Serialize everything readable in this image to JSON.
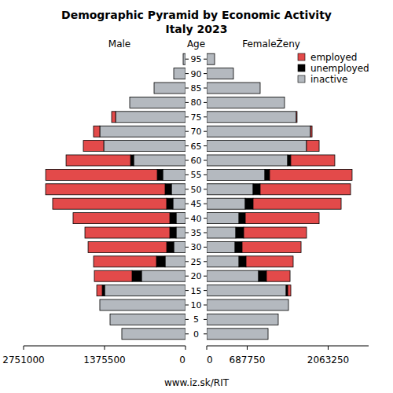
{
  "chart_data": {
    "type": "bar",
    "orientation": "horizontal",
    "stacked": true,
    "title": "Demographic Pyramid by Economic Activity",
    "subtitle": "Italy 2023",
    "left_label": "Male",
    "y_label": "Age",
    "right_label": "FemaleŽeny",
    "source": "www.iz.sk/RIT",
    "legend": "top-right",
    "categories": [
      "0",
      "5",
      "10",
      "15",
      "20",
      "25",
      "30",
      "35",
      "40",
      "45",
      "50",
      "55",
      "60",
      "65",
      "70",
      "75",
      "80",
      "85",
      "90",
      "95"
    ],
    "xlim": [
      0,
      2751000
    ],
    "xticks_left": [
      0,
      1375500,
      2751000
    ],
    "xticks_right": [
      0,
      687750,
      2063250
    ],
    "series": [
      {
        "name": "inactive",
        "color": "#b4b9bf",
        "male": [
          1082000,
          1282000,
          1456000,
          1375000,
          748000,
          347000,
          200000,
          160000,
          160000,
          214000,
          240000,
          387000,
          881000,
          1389000,
          1456000,
          1188000,
          948000,
          534000,
          200000,
          40000
        ],
        "female": [
          1042000,
          1215000,
          1389000,
          1349000,
          881000,
          548000,
          481000,
          494000,
          548000,
          654000,
          788000,
          988000,
          1375000,
          1696000,
          1763000,
          1522000,
          1322000,
          908000,
          454000,
          134000
        ]
      },
      {
        "name": "unemployed",
        "color": "#000000",
        "male": [
          0,
          0,
          0,
          40000,
          160000,
          147000,
          120000,
          107000,
          107000,
          107000,
          107000,
          93000,
          53000,
          0,
          0,
          0,
          0,
          0,
          0,
          0
        ],
        "female": [
          0,
          0,
          0,
          27000,
          134000,
          120000,
          120000,
          134000,
          107000,
          134000,
          120000,
          80000,
          53000,
          0,
          0,
          0,
          0,
          0,
          0,
          0
        ]
      },
      {
        "name": "employed",
        "color": "#e34a4a",
        "male": [
          0,
          0,
          0,
          93000,
          641000,
          1068000,
          1335000,
          1442000,
          1643000,
          1936000,
          2030000,
          1896000,
          1095000,
          347000,
          107000,
          67000,
          0,
          0,
          0,
          0
        ],
        "female": [
          0,
          0,
          0,
          53000,
          401000,
          801000,
          1002000,
          1068000,
          1255000,
          1496000,
          1536000,
          1402000,
          748000,
          214000,
          27000,
          13000,
          0,
          0,
          0,
          0
        ]
      }
    ]
  }
}
